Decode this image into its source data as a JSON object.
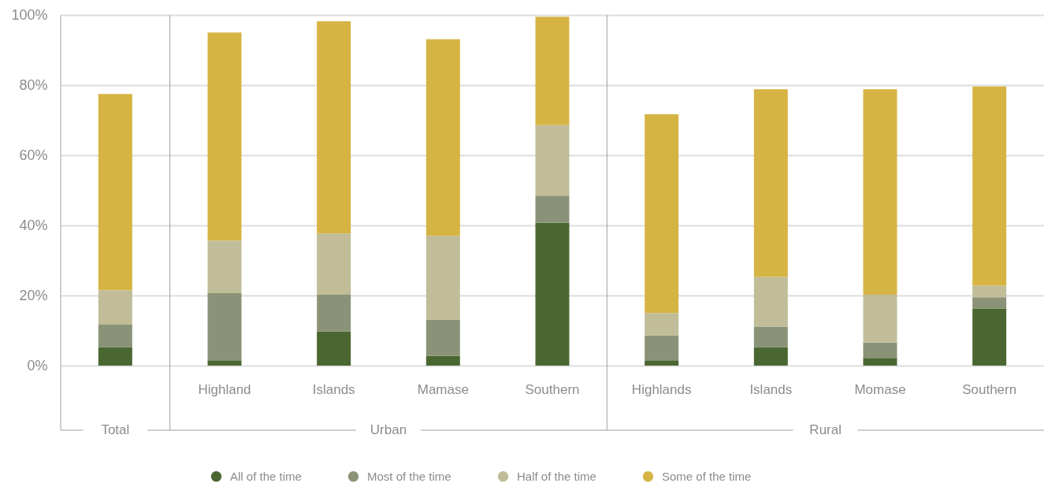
{
  "chart_data": {
    "type": "bar",
    "stacked": true,
    "categories": [
      null,
      "Highland",
      "Islands",
      "Mamase",
      "Southern",
      "Highlands",
      "Islands",
      "Momase",
      "Southern"
    ],
    "series": [
      {
        "name": "All of the time",
        "color": "#4a6731",
        "values": [
          5.3,
          1.5,
          9.8,
          2.8,
          40.8,
          1.5,
          5.3,
          2.2,
          16.3
        ]
      },
      {
        "name": "Most of the time",
        "color": "#8a9377",
        "values": [
          6.4,
          19.2,
          10.4,
          10.3,
          7.7,
          7.1,
          5.8,
          4.4,
          3.2
        ]
      },
      {
        "name": "Half of the time",
        "color": "#c0bd98",
        "values": [
          9.8,
          15.0,
          17.5,
          23.9,
          20.1,
          6.4,
          14.2,
          13.6,
          3.3
        ]
      },
      {
        "name": "Some of the time",
        "color": "#d6b444",
        "values": [
          56.0,
          59.3,
          60.5,
          56.1,
          30.9,
          56.7,
          53.5,
          58.6,
          56.8
        ]
      }
    ],
    "ylim": [
      0,
      100
    ],
    "yticks": [
      {
        "value": 0,
        "label": "0%"
      },
      {
        "value": 20,
        "label": "20%"
      },
      {
        "value": 40,
        "label": "40%"
      },
      {
        "value": 60,
        "label": "60%"
      },
      {
        "value": 80,
        "label": "80%"
      },
      {
        "value": 100,
        "label": "100%"
      }
    ],
    "grid": "y",
    "legend": "bottom",
    "annotations": [
      "Total",
      "Urban",
      "Rural"
    ]
  }
}
